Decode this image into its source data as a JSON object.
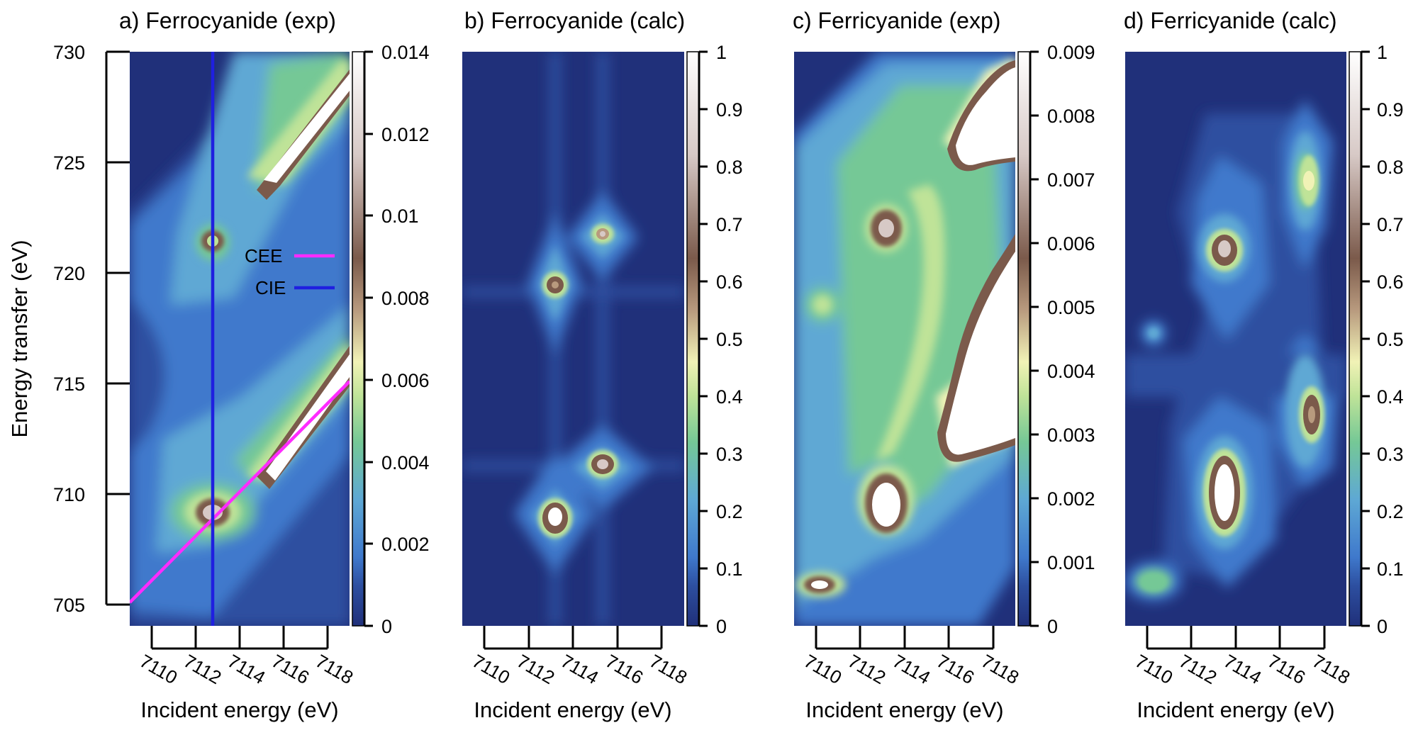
{
  "colormap": [
    "#20307a",
    "#2d4fa0",
    "#3f79cc",
    "#5ea8d4",
    "#75c896",
    "#bfe398",
    "#f1f2b6",
    "#b89a7e",
    "#7b5a4b",
    "#d7c9c6",
    "#ffffff"
  ],
  "line_colors": {
    "cee": "#ff2bff",
    "cie": "#1f1fe0"
  },
  "chart_data": [
    {
      "type": "heatmap",
      "title": "a) Ferrocyanide (exp)",
      "xlabel": "Incident energy (eV)",
      "ylabel": "Energy transfer (eV)",
      "xlim": [
        7109.0,
        7119.0
      ],
      "ylim": [
        704.0,
        730.0
      ],
      "x_ticks": [
        7110,
        7112,
        7114,
        7116,
        7118
      ],
      "y_ticks": [
        705,
        710,
        715,
        720,
        725,
        730
      ],
      "colorbar": {
        "min": 0,
        "max": 0.014,
        "ticks": [
          "0",
          "0.002",
          "0.004",
          "0.006",
          "0.008",
          "0.01",
          "0.012",
          "0.014"
        ]
      },
      "legend": {
        "position": "center-right",
        "items": [
          {
            "name": "CEE",
            "color": "#ff2bff"
          },
          {
            "name": "CIE",
            "color": "#1f1fe0"
          }
        ]
      },
      "cuts": {
        "cie_incident_energy": 7112.9,
        "cee_from": [
          7109,
          705
        ],
        "cee_to": [
          7119,
          715
        ]
      },
      "features": [
        {
          "x": 7112.9,
          "y": 708.9,
          "z": 0.011
        },
        {
          "x": 7112.9,
          "y": 721.4,
          "z": 0.0085
        },
        {
          "x": 7117.5,
          "y": 712.5,
          "z": 0.014
        },
        {
          "x": 7117.5,
          "y": 726.5,
          "z": 0.014
        }
      ]
    },
    {
      "type": "heatmap",
      "title": "b) Ferrocyanide (calc)",
      "xlabel": "Incident energy (eV)",
      "xlim": [
        7109.0,
        7119.0
      ],
      "x_ticks": [
        7110,
        7112,
        7114,
        7116,
        7118
      ],
      "colorbar": {
        "min": 0,
        "max": 1,
        "ticks": [
          "0",
          "0.1",
          "0.2",
          "0.3",
          "0.4",
          "0.5",
          "0.6",
          "0.7",
          "0.8",
          "0.9",
          "1"
        ]
      },
      "features": [
        {
          "x": 7112.8,
          "y": 708.8,
          "z": 0.93
        },
        {
          "x": 7115.4,
          "y": 711.3,
          "z": 0.78
        },
        {
          "x": 7112.8,
          "y": 718.9,
          "z": 0.72
        },
        {
          "x": 7115.4,
          "y": 721.6,
          "z": 0.62
        }
      ]
    },
    {
      "type": "heatmap",
      "title": "c) Ferricyanide (exp)",
      "xlabel": "Incident energy (eV)",
      "xlim": [
        7109.0,
        7119.0
      ],
      "x_ticks": [
        7110,
        7112,
        7114,
        7116,
        7118
      ],
      "colorbar": {
        "min": 0,
        "max": 0.009,
        "ticks": [
          "0",
          "0.001",
          "0.002",
          "0.003",
          "0.004",
          "0.005",
          "0.006",
          "0.007",
          "0.008",
          "0.009"
        ]
      },
      "features": [
        {
          "x": 7110.0,
          "y": 705.8,
          "z": 0.0085
        },
        {
          "x": 7112.9,
          "y": 709.2,
          "z": 0.009
        },
        {
          "x": 7112.9,
          "y": 721.9,
          "z": 0.0078
        },
        {
          "x": 7117.6,
          "y": 713.8,
          "z": 0.009
        },
        {
          "x": 7117.6,
          "y": 726.7,
          "z": 0.009
        }
      ]
    },
    {
      "type": "heatmap",
      "title": "d) Ferricyanide (calc)",
      "xlabel": "Incident energy (eV)",
      "xlim": [
        7109.0,
        7119.0
      ],
      "x_ticks": [
        7110,
        7112,
        7114,
        7116,
        7118
      ],
      "colorbar": {
        "min": 0,
        "max": 1,
        "ticks": [
          "0",
          "0.1",
          "0.2",
          "0.3",
          "0.4",
          "0.5",
          "0.6",
          "0.7",
          "0.8",
          "0.9",
          "1"
        ]
      },
      "features": [
        {
          "x": 7110.0,
          "y": 705.9,
          "z": 0.24
        },
        {
          "x": 7110.0,
          "y": 717.0,
          "z": 0.15
        },
        {
          "x": 7113.4,
          "y": 709.8,
          "z": 0.97
        },
        {
          "x": 7113.4,
          "y": 720.9,
          "z": 0.72
        },
        {
          "x": 7117.5,
          "y": 713.6,
          "z": 0.7
        },
        {
          "x": 7117.5,
          "y": 724.2,
          "z": 0.42
        }
      ]
    }
  ]
}
